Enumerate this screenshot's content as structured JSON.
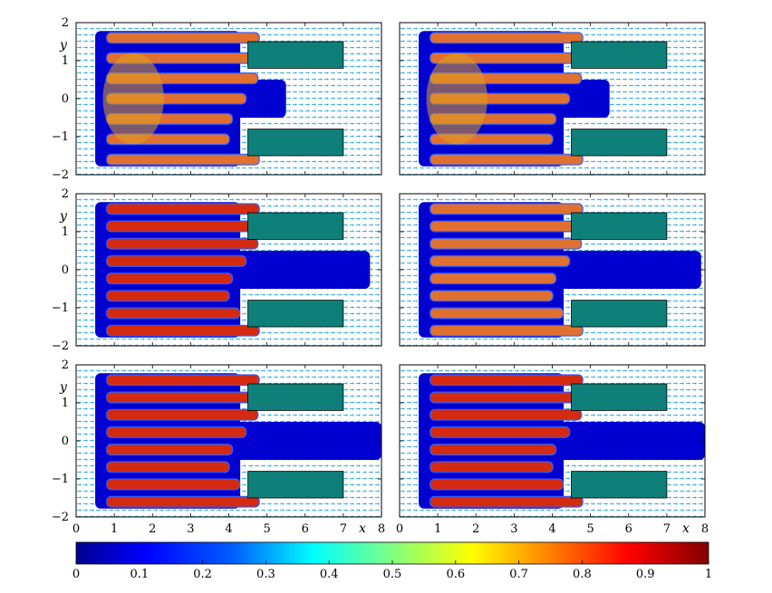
{
  "figure": {
    "description_type": "multi-panel volume-fraction field with velocity arrows",
    "panel_count": 6,
    "layout": "3 rows x 2 columns"
  },
  "chart_data": [
    {
      "type": "heatmap",
      "panel": "row1-left",
      "xlim": [
        0,
        8
      ],
      "ylim": [
        -2,
        2
      ],
      "xlabel": "",
      "ylabel": "y",
      "fingers": 7,
      "extent_x": 5.5,
      "core_level": 0.75
    },
    {
      "type": "heatmap",
      "panel": "row1-right",
      "xlim": [
        0,
        8
      ],
      "ylim": [
        -2,
        2
      ],
      "xlabel": "",
      "ylabel": "",
      "fingers": 7,
      "extent_x": 5.5,
      "core_level": 0.72
    },
    {
      "type": "heatmap",
      "panel": "row2-left",
      "xlim": [
        0,
        8
      ],
      "ylim": [
        -2,
        2
      ],
      "xlabel": "",
      "ylabel": "y",
      "fingers": 8,
      "extent_x": 7.7,
      "core_level": 0.9
    },
    {
      "type": "heatmap",
      "panel": "row2-right",
      "xlim": [
        0,
        8
      ],
      "ylim": [
        -2,
        2
      ],
      "xlabel": "",
      "ylabel": "",
      "fingers": 8,
      "extent_x": 7.9,
      "core_level": 0.85
    },
    {
      "type": "heatmap",
      "panel": "row3-left",
      "xlim": [
        0,
        8
      ],
      "ylim": [
        -2,
        2
      ],
      "xlabel": "x",
      "ylabel": "y",
      "fingers": 8,
      "extent_x": 8,
      "core_level": 0.9
    },
    {
      "type": "heatmap",
      "panel": "row3-right",
      "xlim": [
        0,
        8
      ],
      "ylim": [
        -2,
        2
      ],
      "xlabel": "x",
      "ylabel": "",
      "fingers": 8,
      "extent_x": 8,
      "core_level": 0.88
    }
  ],
  "axes": {
    "x_ticks": [
      "0",
      "1",
      "2",
      "3",
      "4",
      "5",
      "6",
      "7",
      "8"
    ],
    "y_ticks": [
      "2",
      "1",
      "0",
      "−1",
      "−2"
    ],
    "y_tick_values": [
      2,
      1,
      0,
      -1,
      -2
    ],
    "x_label": "x",
    "y_label": "y"
  },
  "obstacles": [
    {
      "x0": 4.5,
      "x1": 7.0,
      "y0": 0.8,
      "y1": 1.5
    },
    {
      "x0": 4.5,
      "x1": 7.0,
      "y0": -1.5,
      "y1": -0.8
    }
  ],
  "colorbar": {
    "ticks": [
      "0",
      "0.1",
      "0.2",
      "0.3",
      "0.4",
      "0.5",
      "0.6",
      "0.7",
      "0.8",
      "0.9",
      "1"
    ],
    "range": [
      0,
      1
    ],
    "colormap": "jet",
    "colors": [
      "#00008f",
      "#0000ff",
      "#0080ff",
      "#00ffff",
      "#80ff80",
      "#ffff00",
      "#ff8000",
      "#ff0000",
      "#800000"
    ]
  },
  "colors": {
    "obstacle_fill": "#0e8079",
    "arrow": "#1aa0d8",
    "frame": "#000000"
  }
}
